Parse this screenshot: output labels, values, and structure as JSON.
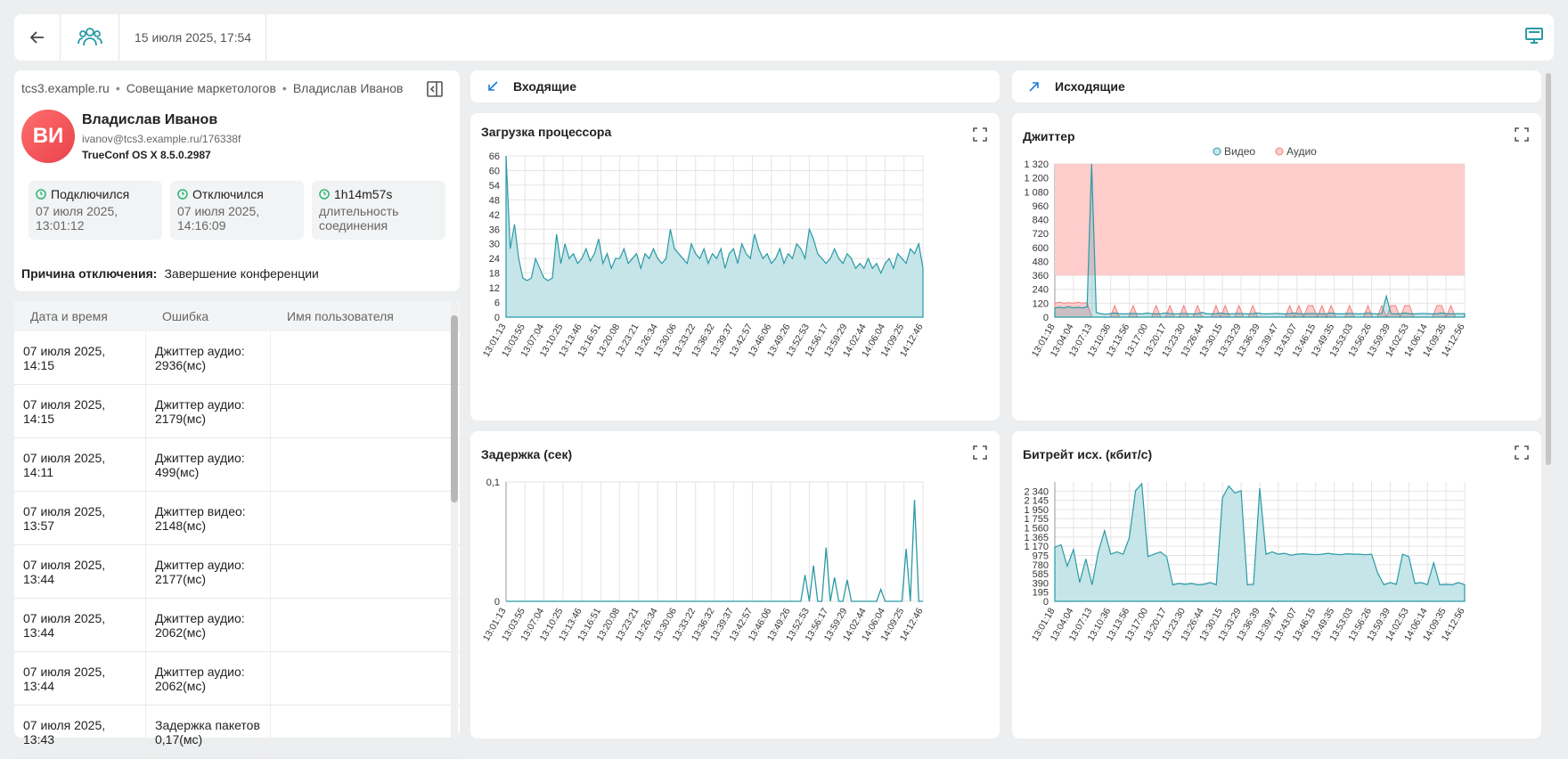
{
  "topbar": {
    "datetime": "15 июля 2025, 17:54"
  },
  "breadcrumbs": [
    "tcs3.example.ru",
    "Совещание маркетологов",
    "Владислав Иванов"
  ],
  "user": {
    "initials": "ВИ",
    "name": "Владислав Иванов",
    "email": "ivanov@tcs3.example.ru/176338f",
    "client": "TrueConf OS X 8.5.0.2987"
  },
  "stats": [
    {
      "title": "Подключился",
      "line1": "07 июля 2025,",
      "line2": "13:01:12"
    },
    {
      "title": "Отключился",
      "line1": "07 июля 2025,",
      "line2": "14:16:09"
    },
    {
      "title": "1h14m57s",
      "line1": "длительность",
      "line2": "соединения"
    }
  ],
  "disconnect": {
    "label": "Причина отключения:",
    "value": "Завершение конференции"
  },
  "errors_table": {
    "columns": [
      "Дата и время",
      "Ошибка",
      "Имя пользователя"
    ],
    "rows": [
      {
        "date1": "07 июля 2025,",
        "date2": "14:15",
        "err1": "Джиттер аудио:",
        "err2": "2936(мс)",
        "user": ""
      },
      {
        "date1": "07 июля 2025,",
        "date2": "14:15",
        "err1": "Джиттер аудио:",
        "err2": "2179(мс)",
        "user": ""
      },
      {
        "date1": "07 июля 2025,",
        "date2": "14:11",
        "err1": "Джиттер аудио:",
        "err2": "499(мс)",
        "user": ""
      },
      {
        "date1": "07 июля 2025,",
        "date2": "13:57",
        "err1": "Джиттер видео:",
        "err2": "2148(мс)",
        "user": ""
      },
      {
        "date1": "07 июля 2025,",
        "date2": "13:44",
        "err1": "Джиттер аудио:",
        "err2": "2177(мс)",
        "user": ""
      },
      {
        "date1": "07 июля 2025,",
        "date2": "13:44",
        "err1": "Джиттер аудио:",
        "err2": "2062(мс)",
        "user": ""
      },
      {
        "date1": "07 июля 2025,",
        "date2": "13:44",
        "err1": "Джиттер аудио:",
        "err2": "2062(мс)",
        "user": ""
      },
      {
        "date1": "07 июля 2025,",
        "date2": "13:43",
        "err1": "Задержка пакетов",
        "err2": "0,17(мс)",
        "user": ""
      }
    ]
  },
  "directions": {
    "incoming": "Входящие",
    "outgoing": "Исходящие"
  },
  "colors": {
    "accent": "#2a9aa6",
    "fill": "#c5e5e8",
    "audio_alert": "#ffcccc",
    "audio_line": "#f08080"
  },
  "chart_data": [
    {
      "type": "area",
      "title": "Загрузка процессора",
      "ylim": [
        0,
        66
      ],
      "yticks": [
        0,
        6,
        12,
        18,
        24,
        30,
        36,
        42,
        48,
        54,
        60,
        66
      ],
      "xticks": [
        "13:01:13",
        "13:03:55",
        "13:07:04",
        "13:10:25",
        "13:13:46",
        "13:16:51",
        "13:20:08",
        "13:23:21",
        "13:26:34",
        "13:30:06",
        "13:33:22",
        "13:36:32",
        "13:39:37",
        "13:42:57",
        "13:46:06",
        "13:49:26",
        "13:52:53",
        "13:56:17",
        "13:59:29",
        "14:02:44",
        "14:06:04",
        "14:09:25",
        "14:12:46"
      ],
      "values": [
        66,
        28,
        38,
        24,
        16,
        15,
        16,
        24,
        20,
        16,
        15,
        16,
        34,
        22,
        30,
        24,
        26,
        22,
        24,
        28,
        23,
        26,
        32,
        22,
        26,
        20,
        24,
        24,
        28,
        22,
        24,
        26,
        20,
        26,
        24,
        28,
        24,
        22,
        24,
        36,
        28,
        26,
        24,
        22,
        30,
        26,
        24,
        28,
        22,
        26,
        24,
        28,
        20,
        26,
        28,
        22,
        30,
        26,
        24,
        34,
        28,
        24,
        26,
        22,
        24,
        28,
        22,
        26,
        24,
        30,
        28,
        24,
        36,
        32,
        26,
        24,
        22,
        24,
        28,
        24,
        22,
        26,
        24,
        20,
        22,
        20,
        24,
        20,
        22,
        18,
        22,
        24,
        20,
        26,
        24,
        22,
        28,
        26,
        30,
        20
      ]
    },
    {
      "type": "area",
      "title": "Джиттер",
      "legend": [
        "Видео",
        "Аудио"
      ],
      "ylim": [
        0,
        1320
      ],
      "yticks": [
        0,
        120,
        240,
        360,
        480,
        600,
        720,
        840,
        960,
        1080,
        1200,
        1320
      ],
      "yticklabels": [
        "0",
        "120",
        "240",
        "360",
        "480",
        "600",
        "720",
        "840",
        "960",
        "1 080",
        "1 200",
        "1 320"
      ],
      "xticks": [
        "13:01:18",
        "13:04:04",
        "13:07:13",
        "13:10:36",
        "13:13:56",
        "13:17:00",
        "13:20:17",
        "13:23:30",
        "13:26:44",
        "13:30:15",
        "13:33:29",
        "13:36:39",
        "13:39:47",
        "13:43:07",
        "13:46:15",
        "13:49:35",
        "13:53:03",
        "13:56:26",
        "13:59:39",
        "14:02:53",
        "14:06:14",
        "14:09:35",
        "14:12:56"
      ],
      "series": [
        {
          "name": "Видео",
          "values": [
            80,
            85,
            80,
            90,
            80,
            85,
            80,
            88,
            1320,
            40,
            30,
            25,
            30,
            35,
            30,
            28,
            30,
            32,
            30,
            28,
            35,
            30,
            28,
            30,
            35,
            30,
            28,
            30,
            32,
            30,
            28,
            30,
            40,
            30,
            28,
            30,
            35,
            30,
            28,
            30,
            32,
            30,
            28,
            30,
            35,
            30,
            28,
            30,
            32,
            30,
            28,
            30,
            35,
            30,
            28,
            30,
            32,
            30,
            28,
            30,
            35,
            30,
            28,
            30,
            32,
            30,
            28,
            30,
            35,
            30,
            28,
            30,
            180,
            30,
            28,
            30,
            35,
            30,
            28,
            30,
            32,
            30,
            28,
            30,
            35,
            30,
            28,
            30,
            30,
            30
          ]
        },
        {
          "name": "Аудио",
          "values": [
            120,
            130,
            120,
            125,
            120,
            130,
            120,
            125,
            0,
            0,
            0,
            0,
            0,
            100,
            0,
            0,
            0,
            100,
            0,
            0,
            0,
            0,
            100,
            0,
            0,
            100,
            0,
            0,
            100,
            0,
            0,
            100,
            0,
            0,
            0,
            100,
            0,
            100,
            0,
            0,
            100,
            0,
            0,
            100,
            0,
            0,
            0,
            0,
            0,
            0,
            0,
            100,
            0,
            100,
            0,
            100,
            100,
            0,
            100,
            0,
            100,
            0,
            0,
            0,
            100,
            0,
            0,
            0,
            100,
            0,
            0,
            100,
            0,
            100,
            100,
            0,
            100,
            100,
            0,
            0,
            0,
            0,
            0,
            100,
            100,
            0,
            100,
            0,
            0,
            0
          ]
        }
      ]
    },
    {
      "type": "line",
      "title": "Задержка (сек)",
      "ylim": [
        0,
        0.1
      ],
      "yticks": [
        0,
        0.1
      ],
      "yticklabels": [
        "0",
        "0,1"
      ],
      "xticks": [
        "13:01:13",
        "13:03:55",
        "13:07:04",
        "13:10:25",
        "13:13:46",
        "13:16:51",
        "13:20:08",
        "13:23:21",
        "13:26:34",
        "13:30:06",
        "13:33:22",
        "13:36:32",
        "13:39:37",
        "13:42:57",
        "13:46:06",
        "13:49:26",
        "13:52:53",
        "13:56:17",
        "13:59:29",
        "14:02:44",
        "14:06:04",
        "14:09:25",
        "14:12:46"
      ],
      "values": [
        0,
        0,
        0,
        0,
        0,
        0,
        0,
        0,
        0,
        0,
        0,
        0,
        0,
        0,
        0,
        0,
        0,
        0,
        0,
        0,
        0,
        0,
        0,
        0,
        0,
        0,
        0,
        0,
        0,
        0,
        0,
        0,
        0,
        0,
        0,
        0,
        0,
        0,
        0,
        0,
        0,
        0,
        0,
        0,
        0,
        0,
        0,
        0,
        0,
        0,
        0,
        0,
        0,
        0,
        0,
        0,
        0,
        0,
        0,
        0,
        0,
        0,
        0,
        0,
        0,
        0,
        0,
        0,
        0,
        0,
        0,
        0.022,
        0,
        0.03,
        0,
        0,
        0.045,
        0,
        0.02,
        0,
        0,
        0.018,
        0,
        0,
        0,
        0,
        0,
        0,
        0,
        0.01,
        0,
        0,
        0,
        0,
        0,
        0.044,
        0,
        0.085,
        0,
        0
      ]
    },
    {
      "type": "area",
      "title": "Битрейт исх. (кбит/с)",
      "ylim": [
        0,
        2535
      ],
      "yticks": [
        0,
        195,
        390,
        585,
        780,
        975,
        1170,
        1365,
        1560,
        1755,
        1950,
        2145,
        2340
      ],
      "yticklabels": [
        "0",
        "195",
        "390",
        "585",
        "780",
        "975",
        "1 170",
        "1 365",
        "1 560",
        "1 755",
        "1 950",
        "2 145",
        "2 340"
      ],
      "xticks": [
        "13:01:18",
        "13:04:04",
        "13:07:13",
        "13:10:36",
        "13:13:56",
        "13:17:00",
        "13:20:17",
        "13:23:30",
        "13:26:44",
        "13:30:15",
        "13:33:29",
        "13:36:39",
        "13:39:47",
        "13:43:07",
        "13:46:15",
        "13:49:35",
        "13:53:03",
        "13:56:26",
        "13:59:39",
        "14:02:53",
        "14:06:14",
        "14:09:35",
        "14:12:56"
      ],
      "values": [
        1150,
        1200,
        750,
        1100,
        400,
        900,
        350,
        1050,
        1500,
        1000,
        1050,
        1000,
        1350,
        2350,
        2500,
        950,
        1000,
        1050,
        950,
        350,
        380,
        360,
        380,
        350,
        360,
        400,
        350,
        2200,
        2450,
        2300,
        2350,
        350,
        360,
        2400,
        1000,
        1050,
        1000,
        1020,
        980,
        1000,
        1010,
        1000,
        990,
        1000,
        1020,
        1000,
        990,
        1010,
        1000,
        1000,
        990,
        1000,
        600,
        350,
        400,
        360,
        1000,
        950,
        380,
        400,
        350,
        820,
        350,
        360,
        350,
        400,
        350
      ]
    }
  ]
}
